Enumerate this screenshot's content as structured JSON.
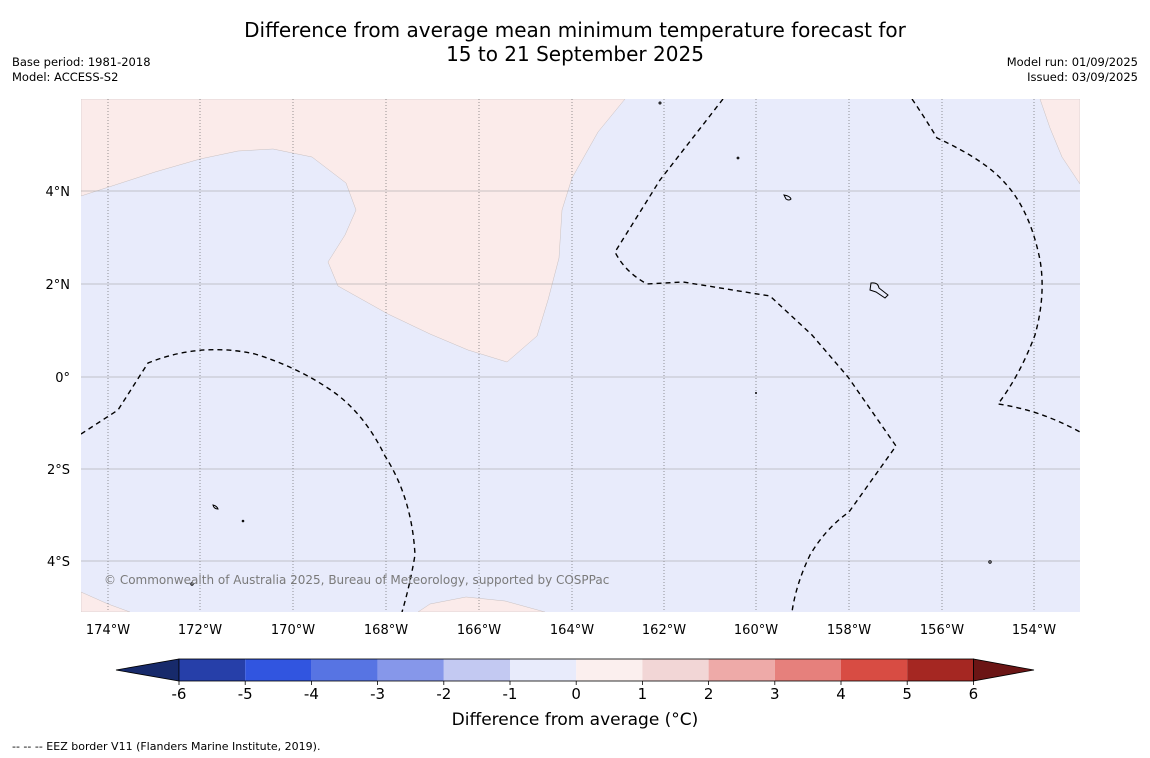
{
  "title": {
    "line1": "Difference from average mean minimum temperature forecast for",
    "line2": "15 to 21 September 2025"
  },
  "meta_left": {
    "base_period": "Base period: 1981-2018",
    "model": "Model: ACCESS-S2"
  },
  "meta_right": {
    "model_run": "Model run: 01/09/2025",
    "issued": "Issued: 03/09/2025"
  },
  "map": {
    "lon_labels": [
      "174°W",
      "172°W",
      "170°W",
      "168°W",
      "166°W",
      "164°W",
      "162°W",
      "160°W",
      "158°W",
      "156°W",
      "154°W"
    ],
    "lat_labels": [
      "4°N",
      "2°N",
      "0°",
      "2°S",
      "4°S"
    ],
    "copyright": "© Commonwealth of Australia 2025, Bureau of Meteorology, supported by COSPPac",
    "colors": {
      "cool_fill": "#e8ebfb",
      "warm_fill": "#fbebea",
      "gridline": "#999999",
      "eez_line": "#000000"
    }
  },
  "colorbar": {
    "ticks": [
      "-6",
      "-5",
      "-4",
      "-3",
      "-2",
      "-1",
      "0",
      "1",
      "2",
      "3",
      "4",
      "5",
      "6"
    ],
    "colors": [
      "#263fa9",
      "#3155e0",
      "#5774e3",
      "#8697ea",
      "#c3c9f2",
      "#e8ebfb",
      "#fbefee",
      "#f2d6d6",
      "#eeaaa8",
      "#e6807c",
      "#d84c43",
      "#a52722"
    ],
    "under_color": "#172a6b",
    "over_color": "#6b1515",
    "label": "Difference from average (°C)"
  },
  "footnote": "--  --  -- EEZ border V11 (Flanders Marine Institute, 2019)."
}
